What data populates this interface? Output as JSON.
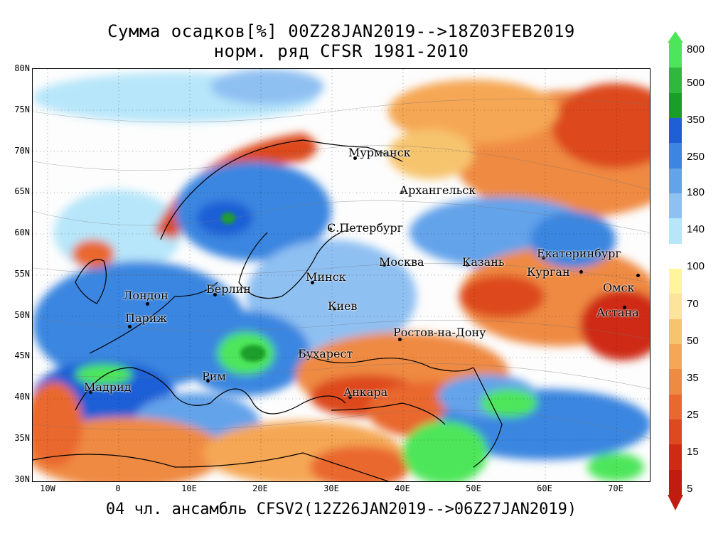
{
  "title_line1": "Сумма осадков[%] 00Z28JAN2019-->18Z03FEB2019",
  "title_line2": "норм. ряд CFSR 1981-2010",
  "footer": "04 чл. ансамбль CFSV2(12Z26JAN2019-->06Z27JAN2019)",
  "lat_ticks": [
    "80N",
    "75N",
    "70N",
    "65N",
    "60N",
    "55N",
    "50N",
    "45N",
    "40N",
    "35N",
    "30N"
  ],
  "lon_ticks": [
    "10W",
    "0",
    "10E",
    "20E",
    "30E",
    "40E",
    "50E",
    "60E",
    "70E"
  ],
  "colorbar": {
    "labels": [
      "800",
      "500",
      "350",
      "250",
      "180",
      "140",
      "100",
      "70",
      "50",
      "35",
      "25",
      "15",
      "5"
    ],
    "colors": [
      "#4de65a",
      "#2fb83c",
      "#1a9e2a",
      "#1f5fd6",
      "#3a86e0",
      "#63a3ea",
      "#8fc0f2",
      "#b7e6fa",
      "#ffffff",
      "#fff59a",
      "#fce49a",
      "#f7c46e",
      "#f5a755",
      "#ef8a43",
      "#e9682e",
      "#dd4a1f",
      "#cf2a12",
      "#c01d10"
    ]
  },
  "cities": [
    {
      "id": "murmansk",
      "name": "Мурманск"
    },
    {
      "id": "arkhangelsk",
      "name": "Архангельск"
    },
    {
      "id": "spb",
      "name": "С.Петербург"
    },
    {
      "id": "moscow",
      "name": "Москва"
    },
    {
      "id": "kazan",
      "name": "Казань"
    },
    {
      "id": "yekaterinburg",
      "name": "Екатеринбург"
    },
    {
      "id": "kurgan",
      "name": "Курган"
    },
    {
      "id": "omsk",
      "name": "Омск"
    },
    {
      "id": "astana",
      "name": "Астана"
    },
    {
      "id": "minsk",
      "name": "Минск"
    },
    {
      "id": "berlin",
      "name": "Берлин"
    },
    {
      "id": "london",
      "name": "Лондон"
    },
    {
      "id": "paris",
      "name": "Париж"
    },
    {
      "id": "kiev",
      "name": "Киев"
    },
    {
      "id": "rostov",
      "name": "Ростов-на-Дону"
    },
    {
      "id": "bucharest",
      "name": "Бухарест"
    },
    {
      "id": "ankara",
      "name": "Анкара"
    },
    {
      "id": "madrid",
      "name": "Мадрид"
    },
    {
      "id": "rome",
      "name": "Рим"
    }
  ]
}
